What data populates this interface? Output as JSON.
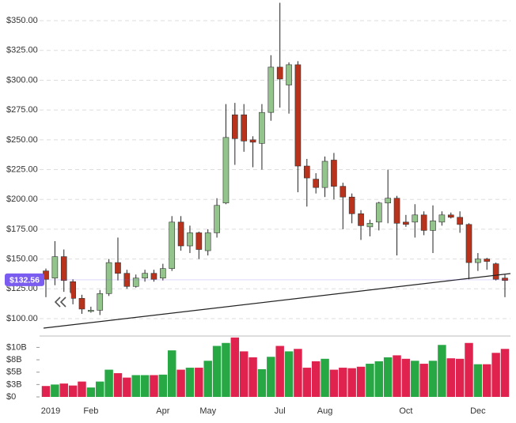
{
  "chart_data": {
    "type": "candlestick",
    "categories": [
      "2019",
      null,
      null,
      null,
      null,
      "Feb",
      null,
      null,
      null,
      null,
      null,
      null,
      null,
      "Apr",
      null,
      null,
      null,
      null,
      "May",
      null,
      null,
      null,
      null,
      null,
      null,
      null,
      "Jul",
      null,
      null,
      null,
      null,
      "Aug",
      null,
      null,
      null,
      null,
      null,
      null,
      null,
      null,
      "Oct",
      null,
      null,
      null,
      null,
      null,
      null,
      null,
      "Dec",
      null,
      null,
      null
    ],
    "open": [
      140,
      134,
      152,
      131,
      117,
      106,
      107,
      121,
      147,
      138,
      127,
      134,
      138,
      134,
      142,
      181,
      161,
      172,
      157,
      172,
      197,
      271,
      271,
      250,
      247,
      273,
      311,
      296,
      313,
      228,
      217,
      210,
      233,
      211,
      202,
      188,
      177,
      181,
      197,
      201,
      181,
      181,
      187,
      174,
      181,
      187,
      185,
      179,
      147,
      150,
      146,
      134
    ],
    "high": [
      142,
      165,
      158,
      133,
      120,
      110,
      124,
      150,
      168,
      141,
      137,
      141,
      141,
      146,
      186,
      186,
      178,
      173,
      175,
      201,
      280,
      281,
      280,
      253,
      280,
      321,
      365,
      315,
      316,
      234,
      222,
      236,
      239,
      214,
      205,
      191,
      183,
      198,
      225,
      203,
      187,
      196,
      190,
      195,
      190,
      189,
      190,
      180,
      155,
      151,
      147,
      137
    ],
    "low": [
      118,
      128,
      122,
      112,
      104,
      105,
      103,
      119,
      132,
      125,
      126,
      131,
      131,
      132,
      140,
      157,
      155,
      150,
      153,
      168,
      196,
      229,
      240,
      227,
      225,
      266,
      277,
      272,
      206,
      194,
      205,
      202,
      200,
      175,
      180,
      166,
      169,
      174,
      180,
      153,
      177,
      168,
      170,
      155,
      178,
      184,
      172,
      133,
      140,
      141,
      132,
      118
    ],
    "close": [
      133,
      152,
      132,
      117,
      108,
      107,
      121,
      147,
      138,
      127,
      134,
      138,
      133,
      142,
      181,
      161,
      172,
      158,
      172,
      195,
      252,
      251,
      249,
      248,
      273,
      311,
      301,
      313,
      228,
      218,
      210,
      232,
      211,
      202,
      188,
      178,
      180,
      197,
      201,
      180,
      179,
      187,
      174,
      182,
      187,
      185,
      179,
      147,
      150,
      148,
      133,
      132
    ],
    "volume": [
      2.2,
      2.5,
      2.7,
      2.3,
      3.1,
      1.9,
      3.1,
      5.5,
      4.8,
      3.9,
      4.4,
      4.4,
      4.4,
      4.5,
      9.4,
      5.5,
      5.9,
      5.9,
      7.3,
      10.3,
      10.9,
      12.0,
      9.2,
      8.0,
      5.6,
      8.1,
      10.3,
      9.2,
      9.7,
      5.9,
      7.2,
      7.7,
      5.5,
      5.9,
      5.8,
      6.1,
      6.7,
      7.2,
      8.0,
      8.4,
      7.7,
      7.3,
      6.7,
      7.3,
      10.5,
      7.8,
      7.7,
      10.9,
      6.6,
      6.6,
      8.9,
      9.7
    ],
    "up_color": "#93c48b",
    "down_color": "#b8321c",
    "volume_up_color": "#27a845",
    "volume_down_color": "#e0234e",
    "ylim": [
      88.7,
      364
    ],
    "yticks": [
      {
        "value": 100,
        "label": "$100.00"
      },
      {
        "value": 125,
        "label": "$125.00"
      },
      {
        "value": 150,
        "label": "$150.00"
      },
      {
        "value": 175,
        "label": "$175.00"
      },
      {
        "value": 200,
        "label": "$200.00"
      },
      {
        "value": 225,
        "label": "$225.00"
      },
      {
        "value": 250,
        "label": "$250.00"
      },
      {
        "value": 275,
        "label": "$275.00"
      },
      {
        "value": 300,
        "label": "$300.00"
      },
      {
        "value": 325,
        "label": "$325.00"
      },
      {
        "value": 350,
        "label": "$350.00"
      }
    ],
    "y2lim": [
      0,
      12.3
    ],
    "y2ticks": [
      {
        "value": 0,
        "label": "$0"
      },
      {
        "value": 2.5,
        "label": "$3B"
      },
      {
        "value": 5,
        "label": "$5B"
      },
      {
        "value": 7.5,
        "label": "$8B"
      },
      {
        "value": 10,
        "label": "$10B"
      }
    ],
    "trendline": [
      92,
      137.8
    ],
    "last_price": {
      "value": 132.56,
      "label": "$132.56"
    },
    "grid": true
  }
}
